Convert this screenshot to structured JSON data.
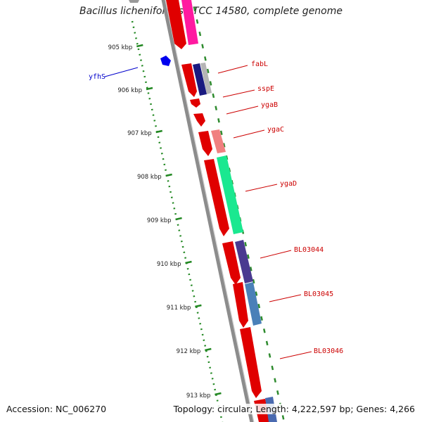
{
  "title": "Bacillus licheniformis ATCC 14580, complete genome",
  "accession": "Accession: NC_006270",
  "summary": "Topology: circular; Length: 4,222,597 bp; Genes: 4,266",
  "ticks": [
    "905 kbp",
    "906 kbp",
    "907 kbp",
    "908 kbp",
    "909 kbp",
    "910 kbp",
    "911 kbp",
    "912 kbp",
    "913 kbp"
  ],
  "genes": [
    {
      "name": "fabL",
      "color": "#cc0000"
    },
    {
      "name": "sspE",
      "color": "#cc0000"
    },
    {
      "name": "ygaB",
      "color": "#cc0000"
    },
    {
      "name": "ygaC",
      "color": "#cc0000"
    },
    {
      "name": "ygaD",
      "color": "#cc0000"
    },
    {
      "name": "BL03044",
      "color": "#cc0000"
    },
    {
      "name": "BL03045",
      "color": "#cc0000"
    },
    {
      "name": "BL03046",
      "color": "#cc0000"
    },
    {
      "name": "yfhS",
      "color": "#0000cc"
    }
  ]
}
